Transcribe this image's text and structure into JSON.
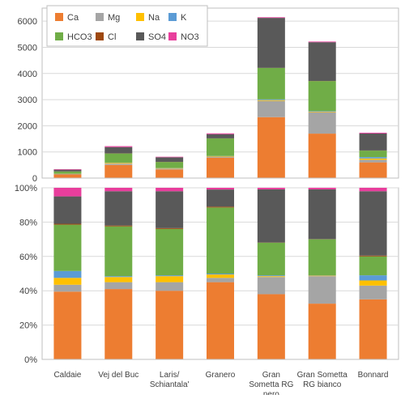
{
  "chart_data": [
    {
      "type": "bar",
      "stacked": true,
      "categories": [
        "Caldaie",
        "Vej del Buc",
        "Laris/\nSchiantala'",
        "Granero",
        "Gran\nSometta RG\nnero",
        "Gran Sometta\nRG bianco",
        "Bonnard"
      ],
      "ylim": [
        0,
        6500
      ],
      "yticks": [
        0,
        1000,
        2000,
        3000,
        4000,
        5000,
        6000
      ],
      "ytick_labels": [
        "0",
        "1000",
        "2000",
        "3000",
        "4000",
        "5000",
        "6000"
      ],
      "grid": true,
      "legend_position": "top-left",
      "legend_order": [
        "Ca",
        "Mg",
        "Na",
        "K",
        "HCO3",
        "Cl",
        "SO4",
        "NO3"
      ],
      "series": [
        {
          "name": "Ca",
          "color": "#ED7D31",
          "values": [
            140,
            500,
            330,
            780,
            2330,
            1700,
            600
          ]
        },
        {
          "name": "Mg",
          "color": "#A5A5A5",
          "values": [
            15,
            50,
            35,
            40,
            620,
            820,
            100
          ]
        },
        {
          "name": "Na",
          "color": "#FFC000",
          "values": [
            10,
            30,
            15,
            20,
            30,
            20,
            50
          ]
        },
        {
          "name": "K",
          "color": "#5B9BD5",
          "values": [
            5,
            10,
            5,
            5,
            30,
            20,
            50
          ]
        },
        {
          "name": "HCO3",
          "color": "#70AD47",
          "values": [
            80,
            350,
            230,
            670,
            1200,
            1150,
            250
          ]
        },
        {
          "name": "Cl",
          "color": "#9E480E",
          "values": [
            5,
            5,
            5,
            5,
            5,
            5,
            5
          ]
        },
        {
          "name": "SO4",
          "color": "#595959",
          "values": [
            65,
            240,
            175,
            160,
            1910,
            1480,
            650
          ]
        },
        {
          "name": "NO3",
          "color": "#E83E9C",
          "values": [
            20,
            35,
            20,
            30,
            25,
            25,
            30
          ]
        }
      ]
    },
    {
      "type": "bar",
      "stacked": true,
      "percent": true,
      "categories": [
        "Caldaie",
        "Vej del Buc",
        "Laris/\nSchiantala'",
        "Granero",
        "Gran\nSometta RG\nnero",
        "Gran Sometta\nRG bianco",
        "Bonnard"
      ],
      "ylim": [
        0,
        100
      ],
      "yticks": [
        0,
        20,
        40,
        60,
        80,
        100
      ],
      "ytick_labels": [
        "0%",
        "20%",
        "40%",
        "60%",
        "80%",
        "100%"
      ],
      "grid": true,
      "series": [
        {
          "name": "Ca",
          "color": "#ED7D31",
          "values": [
            39.5,
            41,
            40,
            45,
            38,
            32.5,
            35
          ]
        },
        {
          "name": "Mg",
          "color": "#A5A5A5",
          "values": [
            4,
            4,
            5,
            2.5,
            10,
            16,
            8
          ]
        },
        {
          "name": "Na",
          "color": "#FFC000",
          "values": [
            4,
            3,
            3.5,
            2,
            0.5,
            0.3,
            3
          ]
        },
        {
          "name": "K",
          "color": "#5B9BD5",
          "values": [
            4,
            0.5,
            0.5,
            0.5,
            0.5,
            0.2,
            3
          ]
        },
        {
          "name": "HCO3",
          "color": "#70AD47",
          "values": [
            27,
            29,
            27,
            38.5,
            19,
            21,
            11
          ]
        },
        {
          "name": "Cl",
          "color": "#9E480E",
          "values": [
            0.5,
            0.5,
            0.5,
            0.5,
            0.1,
            0.1,
            0.5
          ]
        },
        {
          "name": "SO4",
          "color": "#595959",
          "values": [
            16,
            20,
            21.5,
            10,
            31,
            29,
            37.5
          ]
        },
        {
          "name": "NO3",
          "color": "#E83E9C",
          "values": [
            5,
            2,
            2,
            1,
            0.9,
            0.9,
            2
          ]
        }
      ]
    }
  ]
}
